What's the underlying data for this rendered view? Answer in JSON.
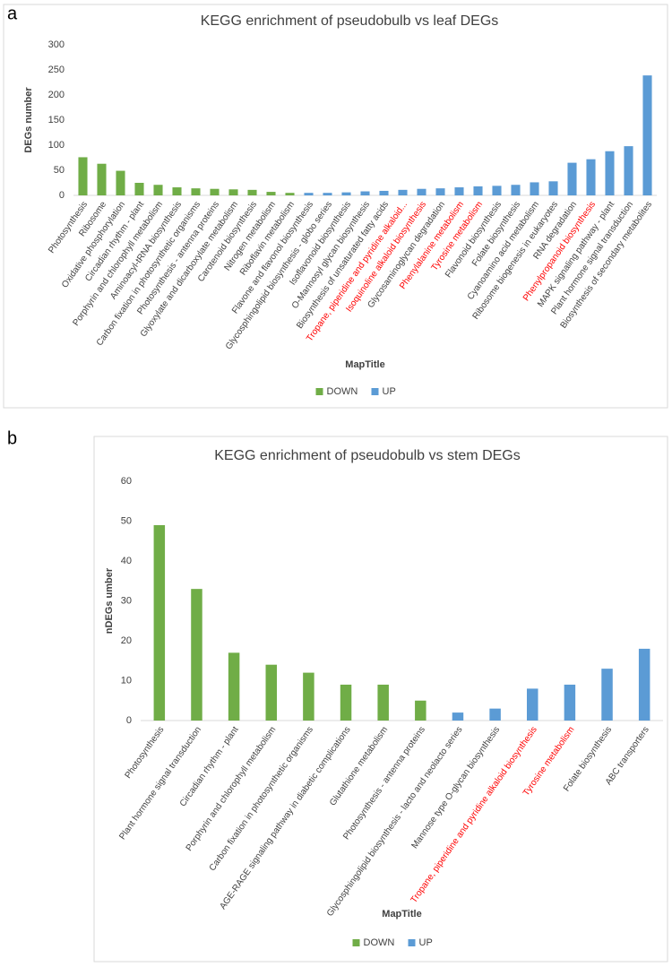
{
  "chart_data": [
    {
      "panel": "a",
      "type": "bar",
      "title": "KEGG enrichment of pseudobulb vs leaf DEGs",
      "xlabel": "MapTitle",
      "ylabel": "DEGs number",
      "categories": [
        "Photosynthesis",
        "Ribosome",
        "Oxidative phosphorylation",
        "Circadian rhythm - plant",
        "Porphyrin and chlorophyll metabolism",
        "Aminoacyl-tRNA biosynthesis",
        "Carbon fixation in photosynthetic organisms",
        "Photosynthesis - antenna proteins",
        "Glyoxylate and dicarboxylate metabolism",
        "Carotenoid biosynthesis",
        "Nitrogen metabolism",
        "Riboflavin metabolism",
        "Flavone and flavonol biosynthesis",
        "Glycosphingolipid biosynthesis - globo series",
        "Isoflavonoid biosynthesis",
        "O-Mannosyl glycan biosynthesis",
        "Biosynthesis of unsaturated fatty acids",
        "Tropane, piperidine and pyridine alkaloid...",
        "Isoquinoline alkaloid biosynthesis",
        "Glycosaminoglycan degradation",
        "Phenylalanine metabolism",
        "Tyrosine metabolism",
        "Flavonoid biosynthesis",
        "Folate biosynthesis",
        "Cyanoamino acid metabolism",
        "Ribosome biogenesis in eukaryotes",
        "RNA degradation",
        "Phenylpropanoid biosynthesis",
        "MAPK signaling pathway - plant",
        "Plant hormone signal transduction",
        "Biosynthesis of secondary metabolites"
      ],
      "category_colors": [
        "#404040",
        "#404040",
        "#404040",
        "#404040",
        "#404040",
        "#404040",
        "#404040",
        "#404040",
        "#404040",
        "#404040",
        "#404040",
        "#404040",
        "#404040",
        "#404040",
        "#404040",
        "#404040",
        "#404040",
        "#ff0000",
        "#ff0000",
        "#404040",
        "#ff0000",
        "#ff0000",
        "#404040",
        "#404040",
        "#404040",
        "#404040",
        "#404040",
        "#ff0000",
        "#404040",
        "#404040",
        "#404040"
      ],
      "series": [
        {
          "name": "DOWN",
          "color": "#70ad47",
          "values": [
            76,
            63,
            49,
            25,
            21,
            16,
            14,
            13,
            12,
            11,
            7,
            5,
            null,
            null,
            null,
            null,
            null,
            null,
            null,
            null,
            null,
            null,
            null,
            null,
            null,
            null,
            null,
            null,
            null,
            null,
            null
          ]
        },
        {
          "name": "UP",
          "color": "#5b9bd5",
          "values": [
            null,
            null,
            null,
            null,
            null,
            null,
            null,
            null,
            null,
            null,
            null,
            null,
            5,
            5,
            6,
            8,
            9,
            11,
            13,
            14,
            16,
            18,
            19,
            21,
            26,
            28,
            65,
            72,
            88,
            98,
            239
          ]
        }
      ],
      "ylim": [
        0,
        300
      ],
      "yticks": [
        0,
        50,
        100,
        150,
        200,
        250,
        300
      ]
    },
    {
      "panel": "b",
      "type": "bar",
      "title": "KEGG enrichment of pseudobulb vs stem DEGs",
      "xlabel": "MapTitle",
      "ylabel": "nDEGs umber",
      "categories": [
        "Photosynthesis",
        "Plant hormone signal transduction",
        "Circadian rhythm - plant",
        "Porphyrin and chlorophyll metabolism",
        "Carbon fixation in photosynthetic organisms",
        "AGE-RAGE signaling pathway in diabetic complications",
        "Glutathione metabolism",
        "Photosynthesis - antenna proteins",
        "Glycosphingolipid biosynthesis - lacto and neolacto series",
        "Mannose type O-glycan biosynthesis",
        "Tropane, piperidine and pyridine alkaloid biosynthesis",
        "Tyrosine metabolism",
        "Folate biosynthesis",
        "ABC transporters"
      ],
      "category_colors": [
        "#404040",
        "#404040",
        "#404040",
        "#404040",
        "#404040",
        "#404040",
        "#404040",
        "#404040",
        "#404040",
        "#404040",
        "#ff0000",
        "#ff0000",
        "#404040",
        "#404040"
      ],
      "series": [
        {
          "name": "DOWN",
          "color": "#70ad47",
          "values": [
            49,
            33,
            17,
            14,
            12,
            9,
            9,
            5,
            null,
            null,
            null,
            null,
            null,
            null
          ]
        },
        {
          "name": "UP",
          "color": "#5b9bd5",
          "values": [
            null,
            null,
            null,
            null,
            null,
            null,
            null,
            null,
            2,
            3,
            8,
            9,
            13,
            18
          ]
        }
      ],
      "ylim": [
        0,
        60
      ],
      "yticks": [
        0,
        10,
        20,
        30,
        40,
        50,
        60
      ]
    }
  ]
}
